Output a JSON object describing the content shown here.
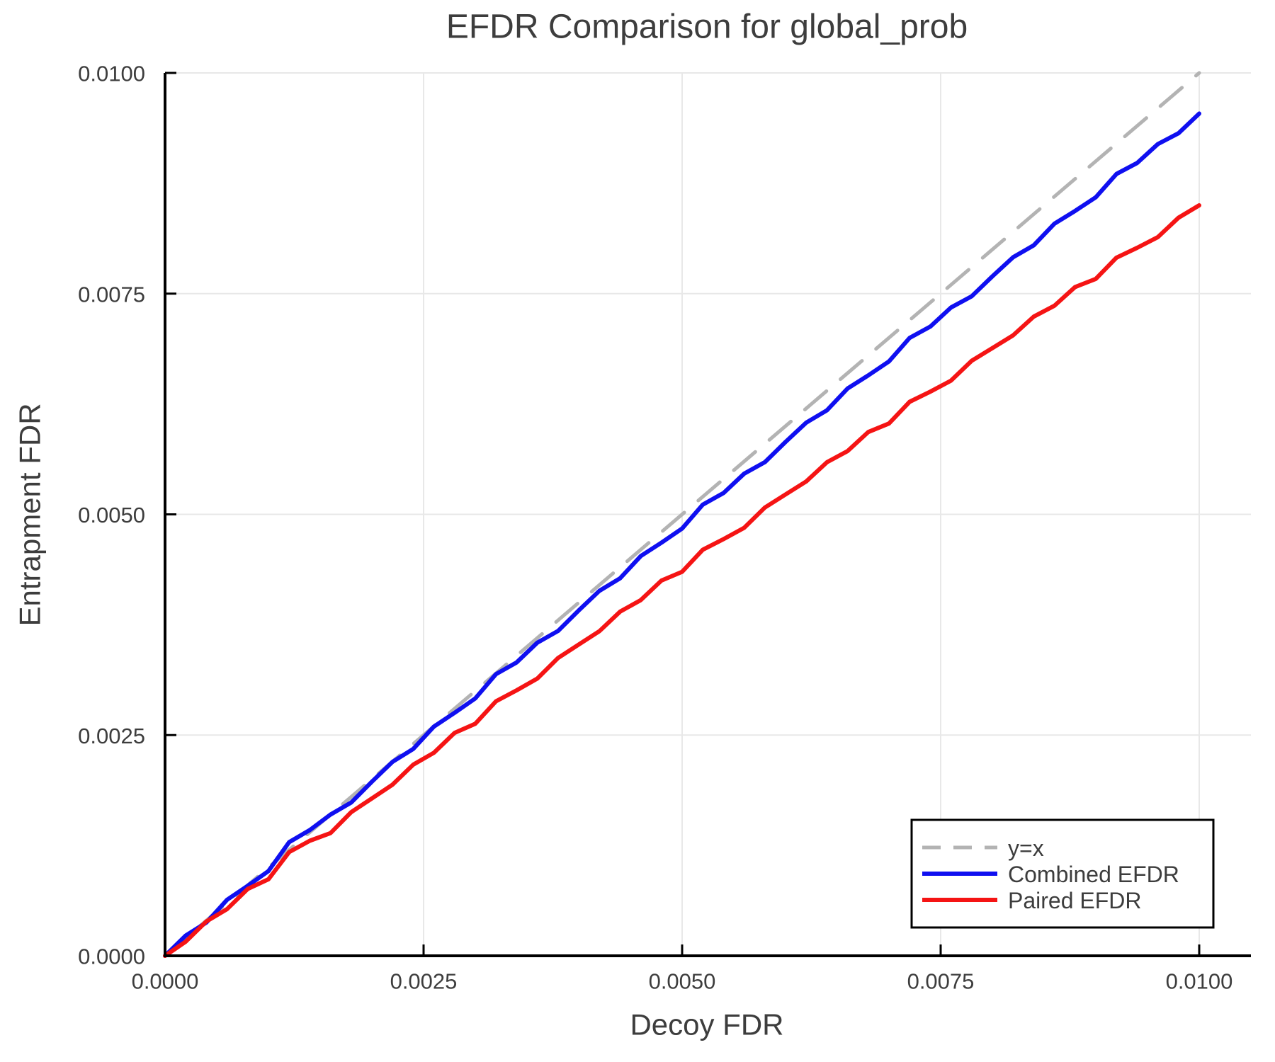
{
  "figure": {
    "title": "EFDR Comparison for global_prob",
    "xlabel": "Decoy FDR",
    "ylabel": "Entrapment FDR"
  },
  "colors": {
    "combined": "#0f0ff0",
    "paired": "#f51414",
    "identity": "#b3b3b3",
    "grid": "#e8e8e8",
    "spine": "#000000",
    "text": "#3d3d3d"
  },
  "legend": {
    "entries": [
      {
        "label": "y=x",
        "color": "#b3b3b3",
        "dashed": true
      },
      {
        "label": "Combined EFDR",
        "color": "#0f0ff0",
        "dashed": false
      },
      {
        "label": "Paired EFDR",
        "color": "#f51414",
        "dashed": false
      }
    ]
  },
  "axes": {
    "x_tick_values": [
      0.0,
      0.0025,
      0.005,
      0.0075,
      0.01
    ],
    "x_tick_labels": [
      "0.0000",
      "0.0025",
      "0.0050",
      "0.0075",
      "0.0100"
    ],
    "y_tick_values": [
      0.0,
      0.0025,
      0.005,
      0.0075,
      0.01
    ],
    "y_tick_labels": [
      "0.0000",
      "0.0025",
      "0.0050",
      "0.0075",
      "0.0100"
    ]
  },
  "chart_data": {
    "type": "line",
    "title": "EFDR Comparison for global_prob",
    "xlabel": "Decoy FDR",
    "ylabel": "Entrapment FDR",
    "xlim": [
      0,
      0.0105
    ],
    "ylim": [
      0,
      0.01
    ],
    "grid": true,
    "legend_position": "lower right",
    "series": [
      {
        "name": "y=x",
        "color": "#b3b3b3",
        "style": "dashed",
        "x": [
          0,
          0.01
        ],
        "y": [
          0,
          0.01
        ]
      },
      {
        "name": "Combined EFDR",
        "color": "#0f0ff0",
        "style": "solid",
        "x": [
          0.0,
          0.0002,
          0.0004,
          0.0006,
          0.0008,
          0.001,
          0.0012,
          0.0014,
          0.0016,
          0.0018,
          0.002,
          0.0022,
          0.0024,
          0.0026,
          0.0028,
          0.003,
          0.0032,
          0.0034,
          0.0036,
          0.0038,
          0.004,
          0.0042,
          0.0044,
          0.0046,
          0.0048,
          0.005,
          0.0052,
          0.0054,
          0.0056,
          0.0058,
          0.006,
          0.0062,
          0.0064,
          0.0066,
          0.0068,
          0.007,
          0.0072,
          0.0074,
          0.0076,
          0.0078,
          0.008,
          0.0082,
          0.0084,
          0.0086,
          0.0088,
          0.009,
          0.0092,
          0.0094,
          0.0096,
          0.0098,
          0.01
        ],
        "y": [
          0.0,
          0.000229,
          0.000377,
          0.000635,
          0.000793,
          0.00096,
          0.001287,
          0.001424,
          0.0016,
          0.001736,
          0.001972,
          0.002197,
          0.002343,
          0.002597,
          0.002752,
          0.002916,
          0.00319,
          0.003323,
          0.003547,
          0.003679,
          0.003912,
          0.004134,
          0.004276,
          0.004528,
          0.004679,
          0.00484,
          0.005111,
          0.005241,
          0.005461,
          0.005591,
          0.00582,
          0.006039,
          0.006178,
          0.006426,
          0.006574,
          0.006732,
          0.006999,
          0.007127,
          0.007343,
          0.00747,
          0.007696,
          0.007912,
          0.008047,
          0.008293,
          0.008437,
          0.008592,
          0.008856,
          0.00898,
          0.009194,
          0.009317,
          0.00954
        ]
      },
      {
        "name": "Paired EFDR",
        "color": "#f51414",
        "style": "solid",
        "x": [
          0.0,
          0.0002,
          0.0004,
          0.0006,
          0.0008,
          0.001,
          0.0012,
          0.0014,
          0.0016,
          0.0018,
          0.002,
          0.0022,
          0.0024,
          0.0026,
          0.0028,
          0.003,
          0.0032,
          0.0034,
          0.0036,
          0.0038,
          0.004,
          0.0042,
          0.0044,
          0.0046,
          0.0048,
          0.005,
          0.0052,
          0.0054,
          0.0056,
          0.0058,
          0.006,
          0.0062,
          0.0064,
          0.0066,
          0.0068,
          0.007,
          0.0072,
          0.0074,
          0.0076,
          0.0078,
          0.008,
          0.0082,
          0.0084,
          0.0086,
          0.0088,
          0.009,
          0.0092,
          0.0094,
          0.0096,
          0.0098,
          0.01
        ],
        "y": [
          0.0,
          0.00016,
          0.00039,
          0.000529,
          0.000758,
          0.000867,
          0.001175,
          0.001303,
          0.00139,
          0.001627,
          0.001783,
          0.001939,
          0.002165,
          0.0023,
          0.002525,
          0.002629,
          0.002883,
          0.003007,
          0.00314,
          0.003373,
          0.003525,
          0.003677,
          0.003898,
          0.004029,
          0.00425,
          0.00435,
          0.0046,
          0.004719,
          0.004848,
          0.005077,
          0.005225,
          0.005373,
          0.00559,
          0.005717,
          0.005933,
          0.006029,
          0.006275,
          0.00639,
          0.006515,
          0.006739,
          0.006883,
          0.007027,
          0.00724,
          0.007363,
          0.007575,
          0.007667,
          0.007908,
          0.008019,
          0.00814,
          0.00836,
          0.0085
        ]
      }
    ]
  }
}
